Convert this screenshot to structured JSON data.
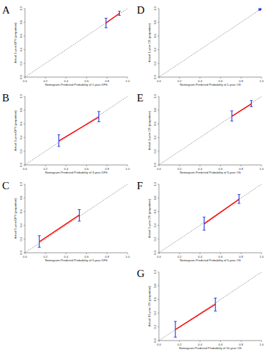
{
  "chart_data": [
    {
      "type": "line",
      "title": "A",
      "x_label": "Nomogram-Predicted Probability of 1-year DFS",
      "y_label": "Actual 1-year DFS (proportion)",
      "x": [
        0.79,
        0.92
      ],
      "values": [
        0.79,
        0.93
      ],
      "y_low": [
        0.72,
        0.9
      ],
      "y_high": [
        0.86,
        0.96
      ],
      "color": "#ff0000",
      "xlim": [
        0,
        1
      ],
      "ylim": [
        0,
        1
      ],
      "xticks": [
        {
          "value": 0,
          "label": "0.0"
        },
        {
          "value": 0.2,
          "label": "0.2"
        },
        {
          "value": 0.4,
          "label": "0.4"
        },
        {
          "value": 0.6,
          "label": "0.6"
        },
        {
          "value": 0.8,
          "label": "0.8"
        },
        {
          "value": 1,
          "label": "1.0"
        }
      ],
      "yticks": [
        {
          "value": 0,
          "label": "0.0"
        },
        {
          "value": 0.2,
          "label": "0.2"
        },
        {
          "value": 0.4,
          "label": "0.4"
        },
        {
          "value": 0.6,
          "label": "0.6"
        },
        {
          "value": 0.8,
          "label": "0.8"
        },
        {
          "value": 1,
          "label": "1.0"
        }
      ]
    },
    {
      "type": "line",
      "title": "B",
      "x_label": "Nomogram-Predicted Probability of 3-year DFS",
      "y_label": "Actual 3-year DFS (proportion)",
      "x": [
        0.33,
        0.72
      ],
      "values": [
        0.35,
        0.7
      ],
      "y_low": [
        0.27,
        0.63
      ],
      "y_high": [
        0.44,
        0.78
      ],
      "color": "#ff0000",
      "xlim": [
        0,
        1
      ],
      "ylim": [
        0,
        1
      ],
      "xticks": [
        {
          "value": 0,
          "label": "0.0"
        },
        {
          "value": 0.2,
          "label": "0.2"
        },
        {
          "value": 0.4,
          "label": "0.4"
        },
        {
          "value": 0.6,
          "label": "0.6"
        },
        {
          "value": 0.8,
          "label": "0.8"
        },
        {
          "value": 1,
          "label": "1.0"
        }
      ],
      "yticks": [
        {
          "value": 0,
          "label": "0.0"
        },
        {
          "value": 0.2,
          "label": "0.2"
        },
        {
          "value": 0.4,
          "label": "0.4"
        },
        {
          "value": 0.6,
          "label": "0.6"
        },
        {
          "value": 0.8,
          "label": "0.8"
        },
        {
          "value": 1,
          "label": "1.0"
        }
      ]
    },
    {
      "type": "line",
      "title": "C",
      "x_label": "Nomogram-Predicted Probability of 5-year DFS",
      "y_label": "Actual 5-year DFS (proportion)",
      "x": [
        0.14,
        0.53
      ],
      "values": [
        0.16,
        0.55
      ],
      "y_low": [
        0.08,
        0.46
      ],
      "y_high": [
        0.25,
        0.63
      ],
      "color": "#ff0000",
      "xlim": [
        0,
        1
      ],
      "ylim": [
        0,
        1
      ],
      "xticks": [
        {
          "value": 0,
          "label": "0.0"
        },
        {
          "value": 0.2,
          "label": "0.2"
        },
        {
          "value": 0.4,
          "label": "0.4"
        },
        {
          "value": 0.6,
          "label": "0.6"
        },
        {
          "value": 0.8,
          "label": "0.8"
        },
        {
          "value": 1,
          "label": "1.0"
        }
      ],
      "yticks": [
        {
          "value": 0,
          "label": "0.0"
        },
        {
          "value": 0.2,
          "label": "0.2"
        },
        {
          "value": 0.4,
          "label": "0.4"
        },
        {
          "value": 0.6,
          "label": "0.6"
        },
        {
          "value": 0.8,
          "label": "0.8"
        },
        {
          "value": 1,
          "label": "1.0"
        }
      ]
    },
    {
      "type": "line",
      "title": "D",
      "x_label": "Nomogram-Predicted Probability of 1-year OS",
      "y_label": "Actual 1-year OS (proportion)",
      "x": [
        0.98,
        0.99
      ],
      "values": [
        0.985,
        0.995
      ],
      "y_low": [
        0.975,
        0.985
      ],
      "y_high": [
        0.995,
        1.0
      ],
      "color": "#ff0000",
      "xlim": [
        0,
        1
      ],
      "ylim": [
        0,
        1
      ],
      "xticks": [
        {
          "value": 0,
          "label": "0.0"
        },
        {
          "value": 0.2,
          "label": "0.2"
        },
        {
          "value": 0.4,
          "label": "0.4"
        },
        {
          "value": 0.6,
          "label": "0.6"
        },
        {
          "value": 0.8,
          "label": "0.8"
        },
        {
          "value": 1,
          "label": "1.0"
        }
      ],
      "yticks": [
        {
          "value": 0,
          "label": "0.0"
        },
        {
          "value": 0.2,
          "label": "0.2"
        },
        {
          "value": 0.4,
          "label": "0.4"
        },
        {
          "value": 0.6,
          "label": "0.6"
        },
        {
          "value": 0.8,
          "label": "0.8"
        },
        {
          "value": 1,
          "label": "1.0"
        }
      ]
    },
    {
      "type": "line",
      "title": "E",
      "x_label": "Nomogram-Predicted Probability of 3-year OS",
      "y_label": "Actual 3-year OS (proportion)",
      "x": [
        0.71,
        0.9
      ],
      "values": [
        0.71,
        0.89
      ],
      "y_low": [
        0.64,
        0.85
      ],
      "y_high": [
        0.79,
        0.94
      ],
      "color": "#ff0000",
      "xlim": [
        0,
        1
      ],
      "ylim": [
        0,
        1
      ],
      "xticks": [
        {
          "value": 0,
          "label": "0.0"
        },
        {
          "value": 0.2,
          "label": "0.2"
        },
        {
          "value": 0.4,
          "label": "0.4"
        },
        {
          "value": 0.6,
          "label": "0.6"
        },
        {
          "value": 0.8,
          "label": "0.8"
        },
        {
          "value": 1,
          "label": "1.0"
        }
      ],
      "yticks": [
        {
          "value": 0,
          "label": "0.0"
        },
        {
          "value": 0.2,
          "label": "0.2"
        },
        {
          "value": 0.4,
          "label": "0.4"
        },
        {
          "value": 0.6,
          "label": "0.6"
        },
        {
          "value": 0.8,
          "label": "0.8"
        },
        {
          "value": 1,
          "label": "1.0"
        }
      ]
    },
    {
      "type": "line",
      "title": "F",
      "x_label": "Nomogram-Predicted Probability of 5-year OS",
      "y_label": "Actual 5-year OS (proportion)",
      "x": [
        0.44,
        0.78
      ],
      "values": [
        0.42,
        0.78
      ],
      "y_low": [
        0.33,
        0.72
      ],
      "y_high": [
        0.52,
        0.85
      ],
      "color": "#ff0000",
      "xlim": [
        0,
        1
      ],
      "ylim": [
        0,
        1
      ],
      "xticks": [
        {
          "value": 0,
          "label": "0.0"
        },
        {
          "value": 0.2,
          "label": "0.2"
        },
        {
          "value": 0.4,
          "label": "0.4"
        },
        {
          "value": 0.6,
          "label": "0.6"
        },
        {
          "value": 0.8,
          "label": "0.8"
        },
        {
          "value": 1,
          "label": "1.0"
        }
      ],
      "yticks": [
        {
          "value": 0,
          "label": "0.0"
        },
        {
          "value": 0.2,
          "label": "0.2"
        },
        {
          "value": 0.4,
          "label": "0.4"
        },
        {
          "value": 0.6,
          "label": "0.6"
        },
        {
          "value": 0.8,
          "label": "0.8"
        },
        {
          "value": 1,
          "label": "1.0"
        }
      ]
    },
    {
      "type": "line",
      "title": "G",
      "x_label": "Nomogram-Predicted Probability of 10-year OS",
      "y_label": "Actual 10-year OS (proportion)",
      "x": [
        0.16,
        0.55
      ],
      "values": [
        0.16,
        0.53
      ],
      "y_low": [
        0.05,
        0.43
      ],
      "y_high": [
        0.28,
        0.62
      ],
      "color": "#ff0000",
      "xlim": [
        0,
        1
      ],
      "ylim": [
        0,
        1
      ],
      "xticks": [
        {
          "value": 0,
          "label": "0.0"
        },
        {
          "value": 0.2,
          "label": "0.2"
        },
        {
          "value": 0.4,
          "label": "0.4"
        },
        {
          "value": 0.6,
          "label": "0.6"
        },
        {
          "value": 0.8,
          "label": "0.8"
        },
        {
          "value": 1,
          "label": "1.0"
        }
      ],
      "yticks": [
        {
          "value": 0,
          "label": "0.0"
        },
        {
          "value": 0.2,
          "label": "0.2"
        },
        {
          "value": 0.4,
          "label": "0.4"
        },
        {
          "value": 0.6,
          "label": "0.6"
        },
        {
          "value": 0.8,
          "label": "0.8"
        },
        {
          "value": 1,
          "label": "1.0"
        }
      ]
    }
  ]
}
